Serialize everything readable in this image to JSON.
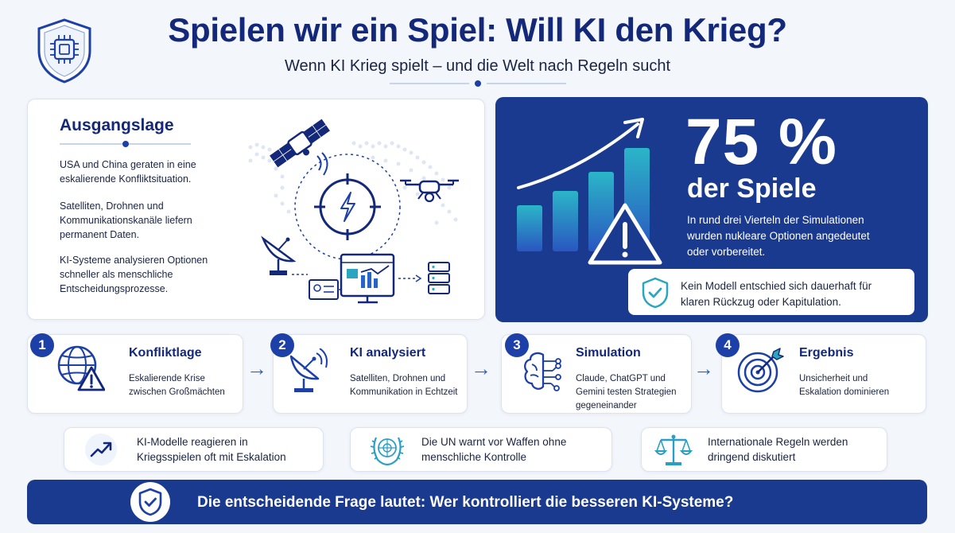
{
  "header": {
    "title": "Spielen wir ein Spiel: Will KI den Krieg?",
    "subtitle": "Wenn KI Krieg spielt – und die Welt nach Regeln sucht"
  },
  "situation": {
    "heading": "Ausgangslage",
    "paragraphs": [
      "USA und China geraten in eine eskalierende Konfliktsituation.",
      "Satelliten, Drohnen und Kommunikationskanäle liefern permanent Daten.",
      "KI-Systeme analysieren Optionen schneller als menschliche Entscheidungsprozesse."
    ]
  },
  "stat": {
    "value": "75 %",
    "label": "der Spiele",
    "description": "In rund drei Vierteln der Simulationen wurden nukleare Optionen angedeutet oder vorbereitet.",
    "note": "Kein Modell entschied sich dauerhaft für klaren Rückzug oder Kapitulation.",
    "accent_color": "#1a3a8f"
  },
  "steps": [
    {
      "number": "1",
      "title": "Konfliktlage",
      "description": "Eskalierende Krise zwischen Großmächten",
      "icon": "globe-warning-icon"
    },
    {
      "number": "2",
      "title": "KI analysiert",
      "description": "Satelliten, Drohnen und Kommunikation in Echtzeit",
      "icon": "satellite-dish-icon"
    },
    {
      "number": "3",
      "title": "Simulation",
      "description": "Claude, ChatGPT und Gemini testen Strategien gegeneinander",
      "icon": "brain-circuit-icon"
    },
    {
      "number": "4",
      "title": "Ergebnis",
      "description": "Unsicherheit und Eskalation dominieren",
      "icon": "target-icon"
    }
  ],
  "facts": [
    {
      "text": "KI-Modelle reagieren in Kriegsspielen oft mit Eskalation",
      "icon": "trend-up-icon"
    },
    {
      "text": "Die UN warnt vor Waffen ohne menschliche Kontrolle",
      "icon": "un-emblem-icon"
    },
    {
      "text": "Internationale Regeln werden dringend diskutiert",
      "icon": "scales-icon"
    }
  ],
  "banner": {
    "text": "Die entscheidende Frage lautet: Wer kontrolliert die besseren KI-Systeme?"
  }
}
